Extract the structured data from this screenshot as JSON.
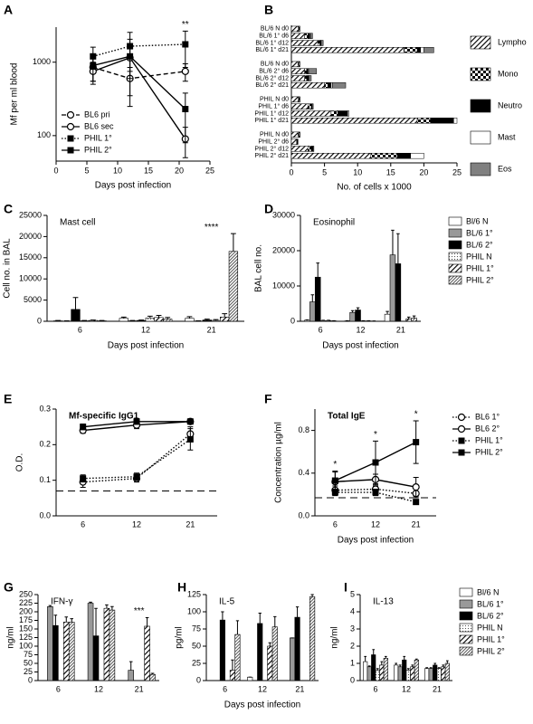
{
  "chart_data": [
    {
      "panel_label": "A",
      "type": "line",
      "x_label": "Days post infection",
      "y_label": "Mf per ml blood",
      "x": [
        6,
        12,
        21
      ],
      "xlim": [
        0,
        25
      ],
      "xticks": [
        0,
        5,
        10,
        15,
        20,
        25
      ],
      "log_y": true,
      "ylim": [
        45,
        3000
      ],
      "yticks": [
        100,
        1000
      ],
      "legend": "lower left",
      "series": [
        {
          "name": "BL6 pri",
          "line_style": "dashed",
          "marker": "circle-open",
          "values": [
            850,
            600,
            750
          ],
          "errors": [
            300,
            250,
            200
          ]
        },
        {
          "name": "BL6 sec",
          "line_style": "solid",
          "marker": "circle-open",
          "values": [
            750,
            1150,
            90
          ],
          "errors": [
            250,
            900,
            40
          ]
        },
        {
          "name": "PHIL 1°",
          "line_style": "dotted",
          "marker": "square",
          "values": [
            1200,
            1650,
            1750
          ],
          "errors": [
            400,
            900,
            900
          ]
        },
        {
          "name": "PHIL 2°",
          "line_style": "solid",
          "marker": "square",
          "values": [
            900,
            1200,
            230
          ],
          "errors": [
            350,
            600,
            150
          ]
        }
      ],
      "annotations": [
        {
          "text": "**",
          "x": 21
        }
      ]
    },
    {
      "panel_label": "B",
      "type": "bar",
      "orientation": "horizontal",
      "stacked": true,
      "x_label": "No. of cells x 1000",
      "categories": [
        "BL/6 N d0",
        "BL/6 1° d6",
        "BL/6 1° d12",
        "BL/6 1° d21",
        "BL/6 N d0",
        "BL/6 2° d6",
        "BL/6 2° d12",
        "BL/6 2° d21",
        "PHIL N d0",
        "PHIL 1° d6",
        "PHIL 1° d12",
        "PHIL 1° d21",
        "PHIL N d0",
        "PHIL 2° d6",
        "PHIL 2° d12",
        "PHIL 2° d21"
      ],
      "xlim": [
        0,
        25
      ],
      "xticks": [
        0,
        5,
        10,
        15,
        20,
        25
      ],
      "legend": "right",
      "series": [
        {
          "name": "Lympho",
          "fill": "hatch",
          "values": [
            1,
            2,
            4,
            17,
            1,
            2,
            2,
            5,
            1,
            2.5,
            6,
            19,
            1,
            0.8,
            2.5,
            12
          ]
        },
        {
          "name": "Mono",
          "fill": "checker",
          "values": [
            0.2,
            0.5,
            0.3,
            2,
            0.2,
            0.3,
            0.3,
            0.5,
            0.2,
            0.5,
            1,
            2,
            0.2,
            0,
            0.5,
            4
          ]
        },
        {
          "name": "Neutro",
          "fill": "#000000",
          "values": [
            0,
            0.3,
            0.2,
            0.5,
            0,
            0.2,
            0.3,
            0.5,
            0.1,
            0.2,
            1.5,
            3.5,
            0.1,
            0.2,
            0.3,
            2
          ]
        },
        {
          "name": "Mast",
          "fill": "#ffffff",
          "values": [
            0,
            0.1,
            0,
            0.5,
            0,
            0.1,
            0.1,
            0.2,
            0,
            0.1,
            0.2,
            0.5,
            0,
            0,
            0.1,
            2
          ]
        },
        {
          "name": "Eos",
          "fill": "#808080",
          "values": [
            0.1,
            0.3,
            0.3,
            1.5,
            0.1,
            1.2,
            0.3,
            2,
            0,
            0,
            0,
            0,
            0,
            0,
            0,
            0
          ]
        }
      ]
    },
    {
      "panel_label": "C",
      "type": "bar",
      "title": "Mast cell",
      "y_label": "Cell no. in BAL",
      "x_label": "Days post infection",
      "categories": [
        "6",
        "12",
        "21"
      ],
      "ylim": [
        0,
        25000
      ],
      "yticks": [
        0,
        5000,
        10000,
        15000,
        20000,
        25000
      ],
      "series": [
        {
          "fill": "#ffffff",
          "values": [
            100,
            700,
            700
          ],
          "errors": [
            100,
            300,
            400
          ]
        },
        {
          "fill": "#999999",
          "values": [
            50,
            100,
            50
          ],
          "errors": [
            50,
            100,
            50
          ]
        },
        {
          "fill": "#000000",
          "values": [
            2800,
            200,
            300
          ],
          "errors": [
            2800,
            100,
            200
          ]
        },
        {
          "fill": "dots",
          "values": [
            100,
            800,
            200
          ],
          "errors": [
            100,
            400,
            200
          ]
        },
        {
          "fill": "hatch",
          "values": [
            200,
            900,
            1000
          ],
          "errors": [
            100,
            500,
            800
          ]
        },
        {
          "fill": "hatch-dense",
          "values": [
            100,
            500,
            16500
          ],
          "errors": [
            100,
            400,
            4200
          ]
        }
      ],
      "annotations": [
        {
          "text": "****",
          "category": "21"
        }
      ]
    },
    {
      "panel_label": "D",
      "type": "bar",
      "title": "Eosinophil",
      "y_label": "BAL cell no.",
      "x_label": "Days post infection",
      "categories": [
        "6",
        "12",
        "21"
      ],
      "ylim": [
        0,
        30000
      ],
      "yticks": [
        0,
        10000,
        20000,
        30000
      ],
      "legend": "right",
      "series": [
        {
          "name": "Bl/6 N",
          "fill": "#ffffff",
          "values": [
            300,
            100,
            2000
          ],
          "errors": [
            100,
            50,
            800
          ]
        },
        {
          "name": "BL/6 1°",
          "fill": "#999999",
          "values": [
            5500,
            2500,
            18800
          ],
          "errors": [
            2000,
            500,
            7000
          ]
        },
        {
          "name": "BL/6 2°",
          "fill": "#000000",
          "values": [
            12500,
            3200,
            16300
          ],
          "errors": [
            4000,
            600,
            8500
          ]
        },
        {
          "name": "PHIL N",
          "fill": "dots",
          "values": [
            200,
            100,
            0
          ],
          "errors": [
            100,
            50,
            0
          ]
        },
        {
          "name": "PHIL 1°",
          "fill": "hatch",
          "values": [
            200,
            100,
            700
          ],
          "errors": [
            100,
            50,
            500
          ]
        },
        {
          "name": "PHIL 2°",
          "fill": "hatch-dense",
          "values": [
            100,
            50,
            900
          ],
          "errors": [
            50,
            50,
            600
          ]
        }
      ]
    },
    {
      "panel_label": "E",
      "type": "line",
      "title": "Mf-specific IgG1",
      "title_bold": true,
      "y_label": "O.D.",
      "categories": [
        "6",
        "12",
        "21"
      ],
      "ylim": [
        0,
        0.3
      ],
      "yticks": [
        {
          "value": 0,
          "label": "0.0"
        },
        0.1,
        0.2,
        0.3
      ],
      "ref_line": 0.07,
      "series": [
        {
          "line_style": "dotted",
          "marker": "circle-open",
          "values": [
            0.095,
            0.105,
            0.23
          ],
          "errors": [
            0.015,
            0.01,
            0.02
          ]
        },
        {
          "line_style": "solid",
          "marker": "circle-open",
          "values": [
            0.24,
            0.255,
            0.265
          ],
          "errors": [
            0.008,
            0.01,
            0.005
          ]
        },
        {
          "line_style": "dotted",
          "marker": "square",
          "values": [
            0.105,
            0.11,
            0.215
          ],
          "errors": [
            0.01,
            0.01,
            0.03
          ]
        },
        {
          "line_style": "solid",
          "marker": "square",
          "values": [
            0.25,
            0.265,
            0.265
          ],
          "errors": [
            0.008,
            0.008,
            0.005
          ]
        }
      ]
    },
    {
      "panel_label": "F",
      "type": "line",
      "title": "Total IgE",
      "title_bold": true,
      "y_label": "Concentration µg/ml",
      "x_label": "Days post infection",
      "categories": [
        "6",
        "12",
        "21"
      ],
      "ylim": [
        0,
        1.0
      ],
      "yticks": [
        {
          "value": 0,
          "label": "0.0"
        },
        0.4,
        0.8
      ],
      "ref_line": 0.17,
      "legend": "right",
      "series": [
        {
          "name": "BL6 1°",
          "line_style": "dotted",
          "marker": "circle-open",
          "values": [
            0.24,
            0.25,
            0.21
          ],
          "errors": [
            0.04,
            0.03,
            0.04
          ]
        },
        {
          "name": "BL6 2°",
          "line_style": "solid",
          "marker": "circle-open",
          "values": [
            0.32,
            0.34,
            0.27
          ],
          "errors": [
            0.1,
            0.05,
            0.09
          ]
        },
        {
          "name": "PHIL 1°",
          "line_style": "dotted",
          "marker": "square",
          "values": [
            0.22,
            0.22,
            0.13
          ],
          "errors": [
            0.03,
            0.03,
            0.02
          ]
        },
        {
          "name": "PHIL 2°",
          "line_style": "solid",
          "marker": "square",
          "values": [
            0.33,
            0.5,
            0.69
          ],
          "errors": [
            0.08,
            0.2,
            0.2
          ]
        }
      ],
      "annotations": [
        {
          "text": "*",
          "category": "6"
        },
        {
          "text": "*",
          "category": "12"
        },
        {
          "text": "*",
          "category": "21"
        }
      ]
    },
    {
      "panel_label": "G",
      "type": "bar",
      "title": "IFN-γ",
      "y_label": "ng/ml",
      "categories": [
        "6",
        "12",
        "21"
      ],
      "ylim": [
        0,
        250
      ],
      "yticks": [
        0,
        25,
        50,
        75,
        100,
        125,
        150,
        175,
        200,
        225,
        250
      ],
      "series": [
        {
          "fill": "#ffffff",
          "values": [
            0,
            0,
            0
          ],
          "errors": [
            0,
            0,
            0
          ]
        },
        {
          "fill": "#999999",
          "values": [
            215,
            225,
            30
          ],
          "errors": [
            3,
            3,
            25
          ]
        },
        {
          "fill": "#000000",
          "values": [
            160,
            130,
            0
          ],
          "errors": [
            30,
            80,
            0
          ]
        },
        {
          "fill": "dots",
          "values": [
            0,
            0,
            0
          ],
          "errors": [
            0,
            0,
            0
          ]
        },
        {
          "fill": "hatch",
          "values": [
            170,
            210,
            158
          ],
          "errors": [
            15,
            10,
            25
          ]
        },
        {
          "fill": "hatch-dense",
          "values": [
            170,
            205,
            18
          ],
          "errors": [
            10,
            10,
            3
          ]
        }
      ],
      "annotations": [
        {
          "text": "***",
          "category": "21"
        }
      ]
    },
    {
      "panel_label": "H",
      "type": "bar",
      "title": "IL-5",
      "y_label": "pg/ml",
      "x_label": "Days post infection",
      "categories": [
        "6",
        "12",
        "21"
      ],
      "ylim": [
        0,
        125
      ],
      "yticks": [
        0,
        25,
        50,
        75,
        100,
        125
      ],
      "series": [
        {
          "fill": "#ffffff",
          "values": [
            0,
            5,
            0
          ],
          "errors": [
            0,
            0,
            0
          ]
        },
        {
          "fill": "#999999",
          "values": [
            0,
            0,
            62
          ],
          "errors": [
            0,
            0,
            0
          ]
        },
        {
          "fill": "#000000",
          "values": [
            88,
            83,
            92
          ],
          "errors": [
            12,
            15,
            15
          ]
        },
        {
          "fill": "dots",
          "values": [
            0,
            0,
            0
          ],
          "errors": [
            0,
            0,
            0
          ]
        },
        {
          "fill": "hatch",
          "values": [
            15,
            50,
            0
          ],
          "errors": [
            15,
            5,
            0
          ]
        },
        {
          "fill": "hatch-dense",
          "values": [
            67,
            78,
            122
          ],
          "errors": [
            20,
            15,
            3
          ]
        }
      ]
    },
    {
      "panel_label": "I",
      "type": "bar",
      "title": "IL-13",
      "y_label": "ng/ml",
      "categories": [
        "6",
        "12",
        "21"
      ],
      "ylim": [
        0,
        5
      ],
      "yticks": [
        0,
        1,
        2,
        3,
        4,
        5
      ],
      "legend": "right",
      "series": [
        {
          "name": "Bl/6 N",
          "fill": "#ffffff",
          "values": [
            1.1,
            0.9,
            0.7
          ],
          "errors": [
            0.3,
            0.1,
            0.05
          ]
        },
        {
          "name": "BL/6 1°",
          "fill": "#999999",
          "values": [
            0.8,
            0.8,
            0.7
          ],
          "errors": [
            0.05,
            0.1,
            0.05
          ]
        },
        {
          "name": "BL/6 2°",
          "fill": "#000000",
          "values": [
            1.5,
            1.2,
            0.9
          ],
          "errors": [
            0.3,
            0.2,
            0.1
          ]
        },
        {
          "name": "PHIL N",
          "fill": "dots",
          "values": [
            0.6,
            0.6,
            0.7
          ],
          "errors": [
            0.1,
            0.1,
            0.05
          ]
        },
        {
          "name": "PHIL 1°",
          "fill": "hatch",
          "values": [
            0.9,
            0.8,
            0.8
          ],
          "errors": [
            0.2,
            0.1,
            0.1
          ]
        },
        {
          "name": "PHIL 2°",
          "fill": "hatch-dense",
          "values": [
            1.3,
            1.2,
            1.0
          ],
          "errors": [
            0.1,
            0.05,
            0.15
          ]
        }
      ]
    }
  ]
}
